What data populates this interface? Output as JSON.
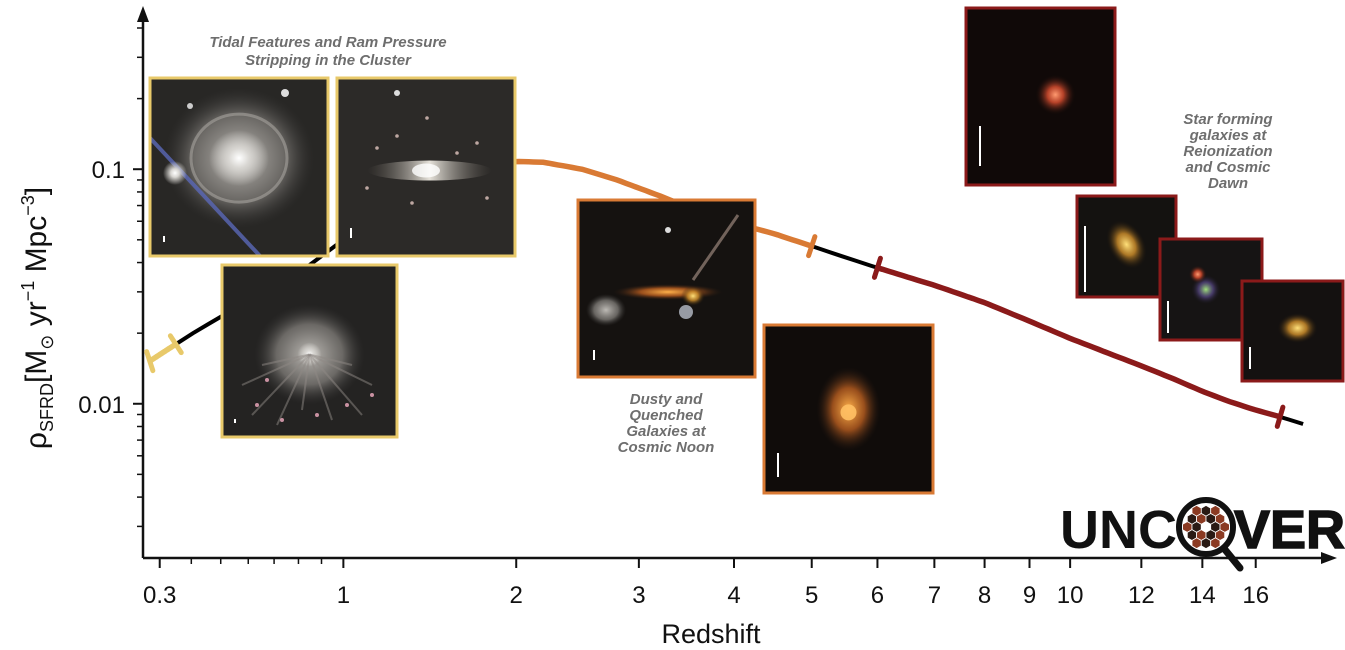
{
  "chart_data": {
    "type": "line",
    "xlabel": "Redshift",
    "ylabel_main": "ρ",
    "ylabel_sub": "SFRD",
    "ylabel_units_pre": "[M",
    "ylabel_sun": "⊙",
    "ylabel_units_mid": " yr",
    "ylabel_exp1": "−1",
    "ylabel_units_mid2": " Mpc",
    "ylabel_exp2": "−3",
    "ylabel_units_post": "]",
    "x_scale": "log(1+z)",
    "y_scale": "log",
    "xlim": [
      0.25,
      19
    ],
    "ylim": [
      0.0022,
      0.45
    ],
    "x_ticks": [
      {
        "value": 0.3,
        "label": "0.3"
      },
      {
        "value": 1,
        "label": "1"
      },
      {
        "value": 2,
        "label": "2"
      },
      {
        "value": 3,
        "label": "3"
      },
      {
        "value": 4,
        "label": "4"
      },
      {
        "value": 5,
        "label": "5"
      },
      {
        "value": 6,
        "label": "6"
      },
      {
        "value": 7,
        "label": "7"
      },
      {
        "value": 8,
        "label": "8"
      },
      {
        "value": 9,
        "label": "9"
      },
      {
        "value": 10,
        "label": "10"
      },
      {
        "value": 12,
        "label": "12"
      },
      {
        "value": 14,
        "label": "14"
      },
      {
        "value": 16,
        "label": "16"
      }
    ],
    "y_ticks": [
      {
        "value": 0.01,
        "label": "0.01"
      },
      {
        "value": 0.1,
        "label": "0.1"
      }
    ],
    "curve": {
      "x": [
        0.27,
        0.3,
        0.4,
        0.5,
        0.6,
        0.8,
        1.0,
        1.2,
        1.4,
        1.6,
        1.8,
        2.0,
        2.2,
        2.5,
        2.8,
        3.2,
        3.6,
        4.0,
        4.5,
        5.0,
        5.5,
        6.0,
        7.0,
        8.0,
        9.0,
        10.0,
        11.0,
        12.0,
        13.0,
        14.0,
        15.0,
        16.0,
        17.0,
        18.0
      ],
      "y": [
        0.0152,
        0.0162,
        0.0198,
        0.0235,
        0.0275,
        0.036,
        0.05,
        0.066,
        0.082,
        0.095,
        0.104,
        0.108,
        0.107,
        0.1,
        0.09,
        0.077,
        0.066,
        0.059,
        0.053,
        0.047,
        0.042,
        0.038,
        0.032,
        0.027,
        0.0225,
        0.019,
        0.0165,
        0.0145,
        0.0128,
        0.0113,
        0.0102,
        0.0094,
        0.0088,
        0.0082
      ]
    },
    "highlights": [
      {
        "from": 0.27,
        "to": 0.35,
        "color": "#e8c96a",
        "caption": [
          "Tidal Features and Ram Pressure",
          "Stripping in the Cluster"
        ]
      },
      {
        "from": 1.4,
        "to": 5.0,
        "color": "#d97a34",
        "caption": [
          "Dusty and",
          "Quenched",
          "Galaxies at",
          "Cosmic Noon"
        ]
      },
      {
        "from": 6.0,
        "to": 17.0,
        "color": "#8b1a1a",
        "caption": [
          "Star forming",
          "galaxies at",
          "Reionization",
          "and Cosmic",
          "Dawn"
        ]
      }
    ],
    "cutouts": [
      {
        "name": "cutout-spiral-cluster",
        "era": 0,
        "style": "spiral"
      },
      {
        "name": "cutout-edge-on-stripping",
        "era": 0,
        "style": "edgeon"
      },
      {
        "name": "cutout-jellyfish",
        "era": 0,
        "style": "jelly"
      },
      {
        "name": "cutout-dusty-merger",
        "era": 1,
        "style": "merger"
      },
      {
        "name": "cutout-quenched",
        "era": 1,
        "style": "quenched"
      },
      {
        "name": "cutout-red-compact",
        "era": 2,
        "style": "redcompact"
      },
      {
        "name": "cutout-highz-a",
        "era": 2,
        "style": "highzA"
      },
      {
        "name": "cutout-highz-b",
        "era": 2,
        "style": "highzB"
      },
      {
        "name": "cutout-highz-c",
        "era": 2,
        "style": "highzC"
      }
    ],
    "grid": false
  },
  "logo": {
    "left": "UNC",
    "right": "VER"
  },
  "colors": {
    "axis": "#111111",
    "curve": "#000000",
    "low_z": "#e8c96a",
    "cosmic_noon": "#d97a34",
    "reionization": "#8b1a1a",
    "caption": "#6e6e6e"
  }
}
